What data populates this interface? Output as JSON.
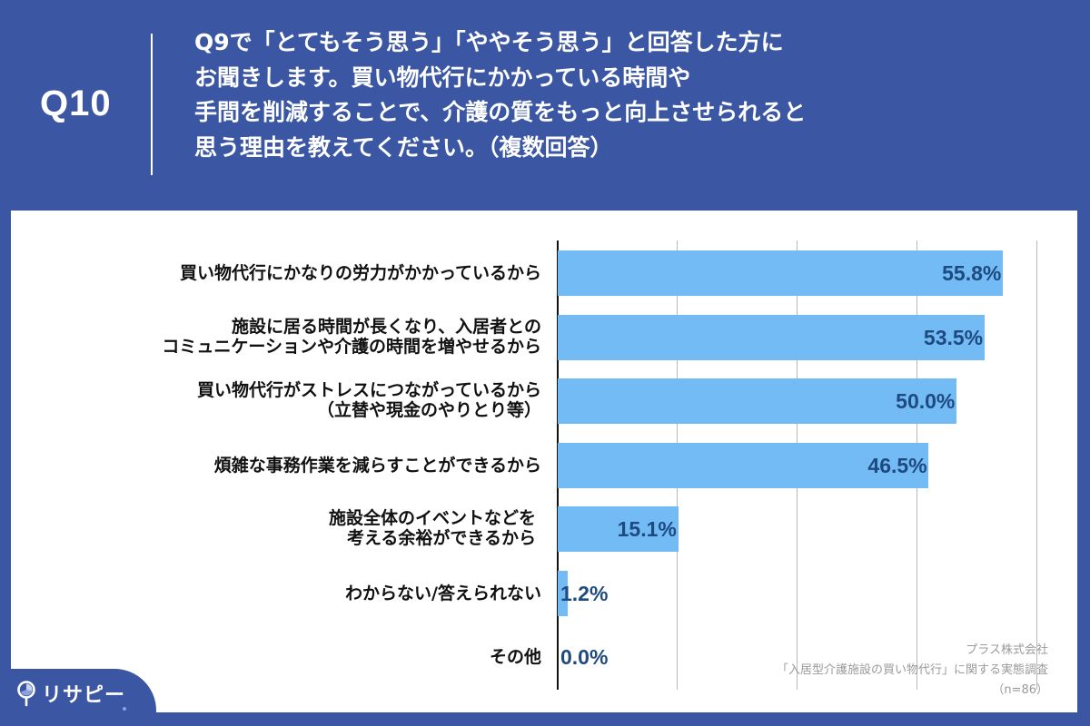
{
  "header": {
    "question_number": "Q10",
    "question_lines": [
      " Q9で「とてもそう思う」「ややそう思う」と回答した方に",
      "お聞きします。買い物代行にかかっている時間や",
      "手間を削減することで、介護の質をもっと向上させられると",
      "思う理由を教えてください。（複数回答）"
    ]
  },
  "colors": {
    "background": "#3B56A3",
    "bar": "#72BBF5",
    "value_label": "#1E4A80",
    "gridline": "#B9B9B9"
  },
  "chart_data": {
    "type": "bar",
    "orientation": "horizontal",
    "title": "Q9で「とてもそう思う」「ややそう思う」と回答した方にお聞きします。買い物代行にかかっている時間や手間を削減することで、介護の質をもっと向上させられると思う理由を教えてください。（複数回答）",
    "categories": [
      "買い物代行にかなりの労力がかかっているから",
      "施設に居る時間が長くなり、入居者とのコミュニケーションや介護の時間を増やせるから",
      "買い物代行がストレスにつながっているから（立替や現金のやりとり等）",
      "煩雑な事務作業を減らすことができるから",
      "施設全体のイベントなどを考える余裕ができるから",
      "わからない/答えられない",
      "その他"
    ],
    "values": [
      55.8,
      53.5,
      50.0,
      46.5,
      15.1,
      1.2,
      0.0
    ],
    "value_labels": [
      "55.8%",
      "53.5%",
      "50.0%",
      "46.5%",
      "15.1%",
      "1.2%",
      "0.0%"
    ],
    "unit": "%",
    "xlabel": "",
    "ylabel": "",
    "xlim": [
      0,
      60
    ],
    "gridlines": [
      15,
      30,
      45,
      60
    ],
    "grid": true,
    "legend": null
  },
  "rows": [
    {
      "label_lines": [
        "買い物代行にかなりの労力がかかっているから"
      ],
      "value": 55.8,
      "value_label": "55.8%"
    },
    {
      "label_lines": [
        "施設に居る時間が長くなり、入居者との",
        "コミュニケーションや介護の時間を増やせるから"
      ],
      "value": 53.5,
      "value_label": "53.5%"
    },
    {
      "label_lines": [
        "買い物代行がストレスにつながっているから",
        "（立替や現金のやりとり等）"
      ],
      "value": 50.0,
      "value_label": "50.0%"
    },
    {
      "label_lines": [
        "煩雑な事務作業を減らすことができるから"
      ],
      "value": 46.5,
      "value_label": "46.5%"
    },
    {
      "label_lines": [
        "施設全体のイベントなどを ",
        "考える余裕ができるから "
      ],
      "value": 15.1,
      "value_label": "15.1%"
    },
    {
      "label_lines": [
        "わからない/答えられない"
      ],
      "value": 1.2,
      "value_label": "1.2%"
    },
    {
      "label_lines": [
        "その他"
      ],
      "value": 0.0,
      "value_label": "0.0%"
    }
  ],
  "source": {
    "company": "プラス株式会社",
    "survey": "「入居型介護施設の買い物代行」に関する実態調査",
    "sample": "（n=86）"
  },
  "logo": {
    "icon": "magnifier-pin-icon",
    "text": "リサピー"
  }
}
